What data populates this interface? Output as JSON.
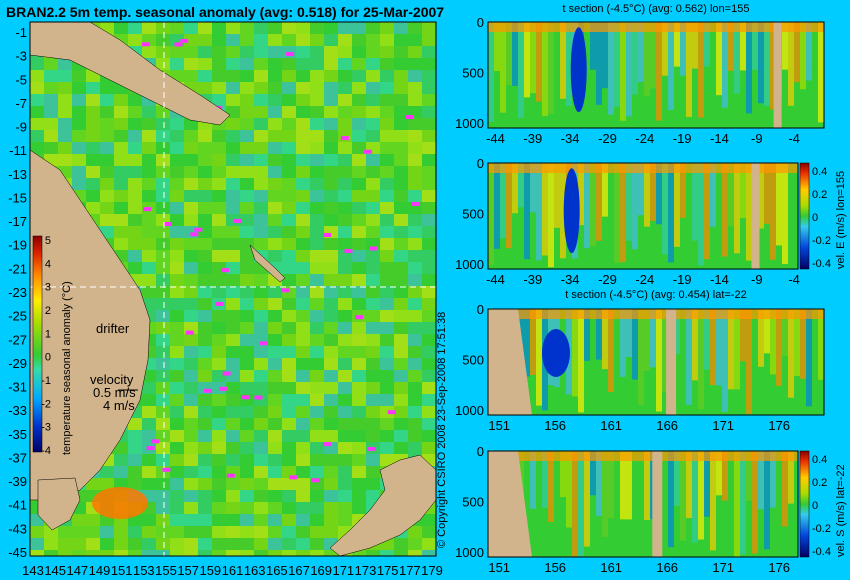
{
  "chart_data": [
    {
      "type": "heatmap",
      "title": "BRAN2.2 5m temp. seasonal anomaly (avg: 0.518) for 25-Mar-2007",
      "xlim": [
        143,
        180
      ],
      "ylim": [
        -45,
        0
      ],
      "x_ticks": [
        "143",
        "145",
        "147",
        "149",
        "151",
        "153",
        "155",
        "157",
        "159",
        "161",
        "163",
        "165",
        "167",
        "169",
        "171",
        "173",
        "175",
        "177",
        "179"
      ],
      "y_ticks": [
        "-1",
        "-3",
        "-5",
        "-7",
        "-9",
        "-11",
        "-13",
        "-15",
        "-17",
        "-19",
        "-21",
        "-23",
        "-25",
        "-27",
        "-29",
        "-31",
        "-33",
        "-35",
        "-37",
        "-39",
        "-41",
        "-43",
        "-45"
      ],
      "crosshair": {
        "lon": 155,
        "lat": -22
      },
      "colorbar": {
        "label": "temperature seasonal anomaly (°C)",
        "ticks": [
          "5",
          "4",
          "3",
          "2",
          "1",
          "0",
          "-1",
          "-2",
          "-3",
          "-4"
        ],
        "range": [
          -4,
          5
        ]
      },
      "annotations": {
        "drifter": "drifter",
        "velocity": "velocity",
        "velocity_05": "0.5 m/s",
        "velocity_4": "4 m/s"
      }
    },
    {
      "type": "heatmap",
      "title": "t section (-4.5°C) (avg: 0.562) lon=155",
      "x_ticks": [
        "-44",
        "-39",
        "-34",
        "-29",
        "-24",
        "-19",
        "-14",
        "-9",
        "-4"
      ],
      "y_ticks": [
        "0",
        "500",
        "1000"
      ],
      "xlim": [
        -45,
        0
      ],
      "ylim": [
        1050,
        0
      ]
    },
    {
      "type": "heatmap",
      "title": "",
      "x_ticks": [
        "-44",
        "-39",
        "-34",
        "-29",
        "-24",
        "-19",
        "-14",
        "-9",
        "-4"
      ],
      "y_ticks": [
        "0",
        "500",
        "1000"
      ],
      "xlim": [
        -45,
        0
      ],
      "ylim": [
        1050,
        0
      ],
      "colorbar": {
        "label": "vel. E (m/s) lon=155",
        "ticks": [
          "0.4",
          "0.2",
          "0",
          "-0.2",
          "-0.4"
        ],
        "range": [
          -0.4,
          0.4
        ]
      }
    },
    {
      "type": "heatmap",
      "title": "t section (-4.5°C) (avg: 0.454) lat=-22",
      "x_ticks": [
        "151",
        "156",
        "161",
        "166",
        "171",
        "176"
      ],
      "y_ticks": [
        "0",
        "500",
        "1000"
      ],
      "xlim": [
        150,
        180
      ],
      "ylim": [
        1050,
        0
      ]
    },
    {
      "type": "heatmap",
      "title": "",
      "x_ticks": [
        "151",
        "156",
        "161",
        "166",
        "171",
        "176"
      ],
      "y_ticks": [
        "0",
        "500",
        "1000"
      ],
      "xlim": [
        150,
        180
      ],
      "ylim": [
        1050,
        0
      ],
      "colorbar": {
        "label": "vel. S (m/s) lat=-22",
        "ticks": [
          "0.4",
          "0.2",
          "0",
          "-0.2",
          "-0.4"
        ],
        "range": [
          -0.4,
          0.4
        ]
      }
    }
  ],
  "copyright": "© Copyright CSIRO 2008  23-Sep-2008 17:51:38",
  "colors": {
    "background": "#00ccff",
    "land": "#d2b48c",
    "ocean_base": "#33cc33"
  }
}
